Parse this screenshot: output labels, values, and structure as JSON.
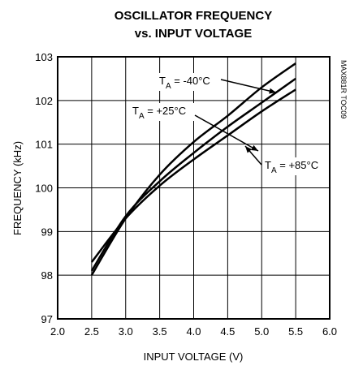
{
  "chart_data": {
    "type": "line",
    "title": [
      "OSCILLATOR FREQUENCY",
      "vs. INPUT VOLTAGE"
    ],
    "x_label": "INPUT VOLTAGE (V)",
    "y_label": "FREQUENCY (kHz)",
    "side_note": "MAX881R TOC09",
    "x": [
      2.5,
      3.0,
      3.5,
      4.0,
      4.5,
      5.0,
      5.5
    ],
    "series": [
      {
        "name": "-40°C",
        "color": "#000000",
        "values": [
          98.0,
          99.3,
          100.3,
          101.05,
          101.65,
          102.3,
          102.85
        ]
      },
      {
        "name": "+25°C",
        "color": "#000000",
        "values": [
          98.1,
          99.35,
          100.15,
          100.8,
          101.4,
          101.95,
          102.5
        ]
      },
      {
        "name": "+85°C",
        "color": "#000000",
        "values": [
          98.3,
          99.3,
          100.05,
          100.65,
          101.2,
          101.75,
          102.25
        ]
      }
    ],
    "annotations": [
      {
        "base": "T",
        "sub": "A",
        "rest": " = -40°C"
      },
      {
        "base": "T",
        "sub": "A",
        "rest": " = +25°C"
      },
      {
        "base": "T",
        "sub": "A",
        "rest": " = +85°C"
      }
    ],
    "xlim": [
      2,
      6
    ],
    "xticks": [
      {
        "value": 2,
        "label": "2.0"
      },
      2.5,
      {
        "value": 3,
        "label": "3.0"
      },
      3.5,
      {
        "value": 4,
        "label": "4.0"
      },
      4.5,
      {
        "value": 5,
        "label": "5.0"
      },
      5.5,
      {
        "value": 6,
        "label": "6.0"
      }
    ],
    "ylim": [
      97,
      103
    ],
    "yticks": [
      97,
      98,
      99,
      100,
      101,
      102,
      103
    ],
    "grid": true
  }
}
